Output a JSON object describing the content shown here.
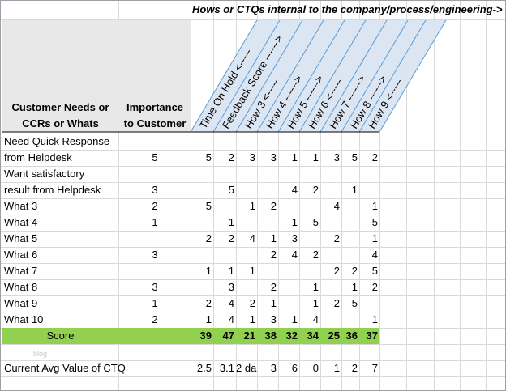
{
  "header": {
    "caption": "Hows or CTQs internal to the company/process/engineering->",
    "col_needs": [
      "Customer Needs or",
      "CCRs or Whats"
    ],
    "col_importance": [
      "Importance",
      "to Customer"
    ],
    "hows": [
      "Time On Hold <-----",
      "Feedback Score ------>",
      "How 3 <-----",
      "How 4 ------>",
      "How 5 ------>",
      "How 6 <-----",
      "How 7 ------>",
      "How 8 ------>",
      "How 9 <-----"
    ]
  },
  "rows": [
    {
      "need": "Need Quick Response",
      "importance": "",
      "values": [
        "",
        "",
        "",
        "",
        "",
        "",
        "",
        "",
        ""
      ]
    },
    {
      "need": "from Helpdesk",
      "importance": "5",
      "values": [
        "5",
        "2",
        "3",
        "3",
        "1",
        "1",
        "3",
        "5",
        "2"
      ]
    },
    {
      "need": "Want satisfactory",
      "importance": "",
      "values": [
        "",
        "",
        "",
        "",
        "",
        "",
        "",
        "",
        ""
      ]
    },
    {
      "need": "result from Helpdesk",
      "importance": "3",
      "values": [
        "",
        "5",
        "",
        "",
        "4",
        "2",
        "",
        "1",
        ""
      ]
    },
    {
      "need": "What 3",
      "importance": "2",
      "values": [
        "5",
        "",
        "1",
        "2",
        "",
        "",
        "4",
        "",
        "1"
      ]
    },
    {
      "need": "What 4",
      "importance": "1",
      "values": [
        "",
        "1",
        "",
        "",
        "1",
        "5",
        "",
        "",
        "5"
      ]
    },
    {
      "need": "What 5",
      "importance": "",
      "values": [
        "2",
        "2",
        "4",
        "1",
        "3",
        "",
        "2",
        "",
        "1"
      ]
    },
    {
      "need": "What 6",
      "importance": "3",
      "values": [
        "",
        "",
        "",
        "2",
        "4",
        "2",
        "",
        "",
        "4"
      ]
    },
    {
      "need": "What 7",
      "importance": "",
      "values": [
        "1",
        "1",
        "1",
        "",
        "",
        "",
        "2",
        "2",
        "5"
      ]
    },
    {
      "need": "What 8",
      "importance": "3",
      "values": [
        "",
        "3",
        "",
        "2",
        "",
        "1",
        "",
        "1",
        "2"
      ]
    },
    {
      "need": "What 9",
      "importance": "1",
      "values": [
        "2",
        "4",
        "2",
        "1",
        "",
        "1",
        "2",
        "5",
        ""
      ]
    },
    {
      "need": "What 10",
      "importance": "2",
      "values": [
        "1",
        "4",
        "1",
        "3",
        "1",
        "4",
        "",
        "",
        "1"
      ]
    }
  ],
  "score": {
    "label": "Score",
    "values": [
      "39",
      "47",
      "21",
      "38",
      "32",
      "34",
      "25",
      "36",
      "37"
    ]
  },
  "watermark": "blog",
  "current": {
    "label": "Current Avg Value of CTQ",
    "values": [
      "2.5",
      "3.1",
      "2 da",
      "3",
      "6",
      "0",
      "1",
      "2",
      "7"
    ]
  },
  "colors": {
    "score_band": "#92d050",
    "diagonal_line": "#5b9bd5",
    "diagonal_fill": "#dce6f2",
    "header_fill": "#e8e8e8"
  }
}
